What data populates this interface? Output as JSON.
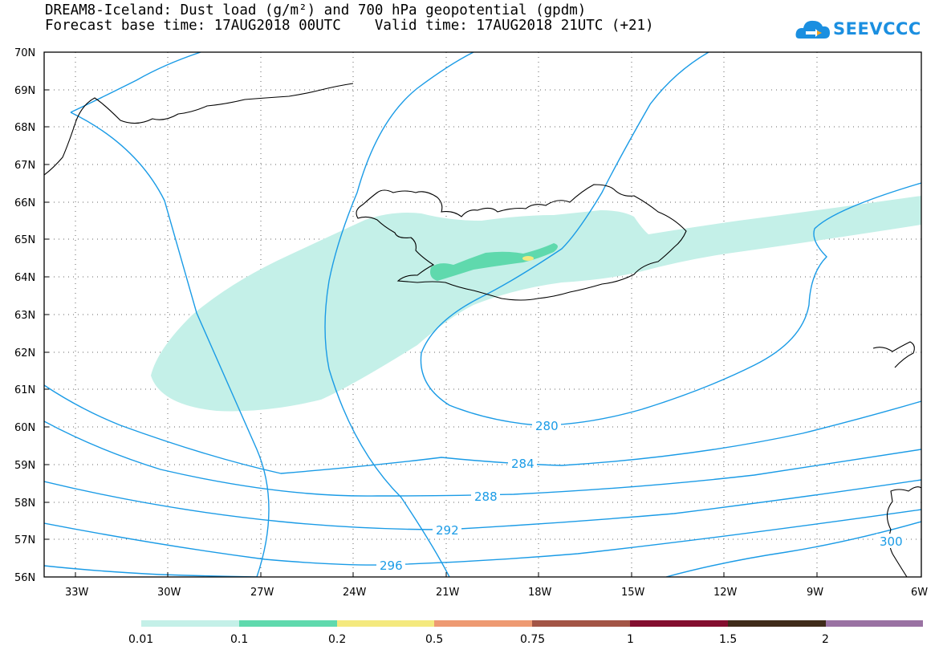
{
  "title": {
    "line1": "DREAM8-Iceland: Dust load (g/m²) and 700 hPa geopotential (gpdm)",
    "line2": "Forecast base time: 17AUG2018 00UTC    Valid time: 17AUG2018 21UTC (+21)"
  },
  "logo": {
    "text": "SEEVCCC",
    "cloud_color": "#1b8fe0",
    "arrow_color": "#f5a623"
  },
  "map": {
    "lon_range": [
      -34.5,
      -6
    ],
    "lat_range": [
      56,
      70
    ],
    "lat_labels": [
      "70N",
      "69N",
      "68N",
      "67N",
      "66N",
      "65N",
      "64N",
      "63N",
      "62N",
      "61N",
      "60N",
      "59N",
      "58N",
      "57N",
      "56N"
    ],
    "lon_labels": [
      "33W",
      "30W",
      "27W",
      "24W",
      "21W",
      "18W",
      "15W",
      "12W",
      "9W",
      "6W"
    ],
    "contour_color": "#1a9be6",
    "contour_labels": [
      "280",
      "284",
      "288",
      "292",
      "296",
      "300"
    ]
  },
  "legend": {
    "colors": [
      "#c4f0e8",
      "#5fd9ad",
      "#f4e97e",
      "#ee9a72",
      "#a35546",
      "#830e2f",
      "#3f2b1a",
      "#9a72a3"
    ],
    "labels": [
      "0.01",
      "0.1",
      "0.2",
      "0.5",
      "0.75",
      "1",
      "1.5",
      "2"
    ]
  }
}
